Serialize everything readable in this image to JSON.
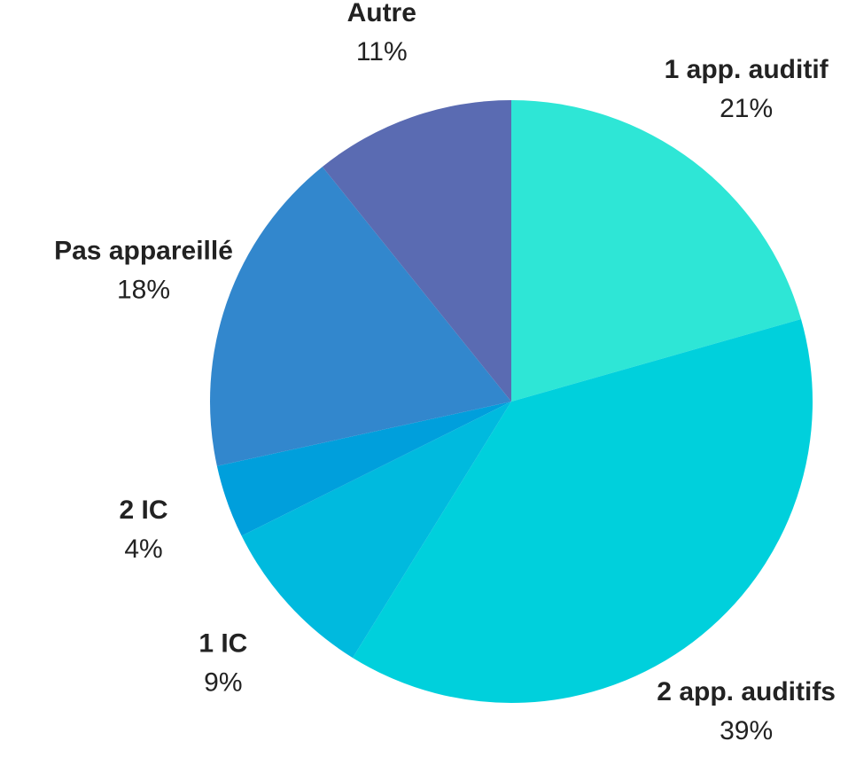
{
  "chart_data": {
    "type": "pie",
    "categories": [
      "1 app. auditif",
      "2 app. auditifs",
      "1 IC",
      "2 IC",
      "Pas appareillé",
      "Autre"
    ],
    "values": [
      21,
      39,
      9,
      4,
      18,
      11
    ],
    "value_labels": [
      "21%",
      "39%",
      "9%",
      "4%",
      "18%",
      "11%"
    ],
    "colors": [
      "#2ee6d6",
      "#00d0dc",
      "#00bade",
      "#009fdc",
      "#3287cd",
      "#5a6bb2"
    ]
  }
}
